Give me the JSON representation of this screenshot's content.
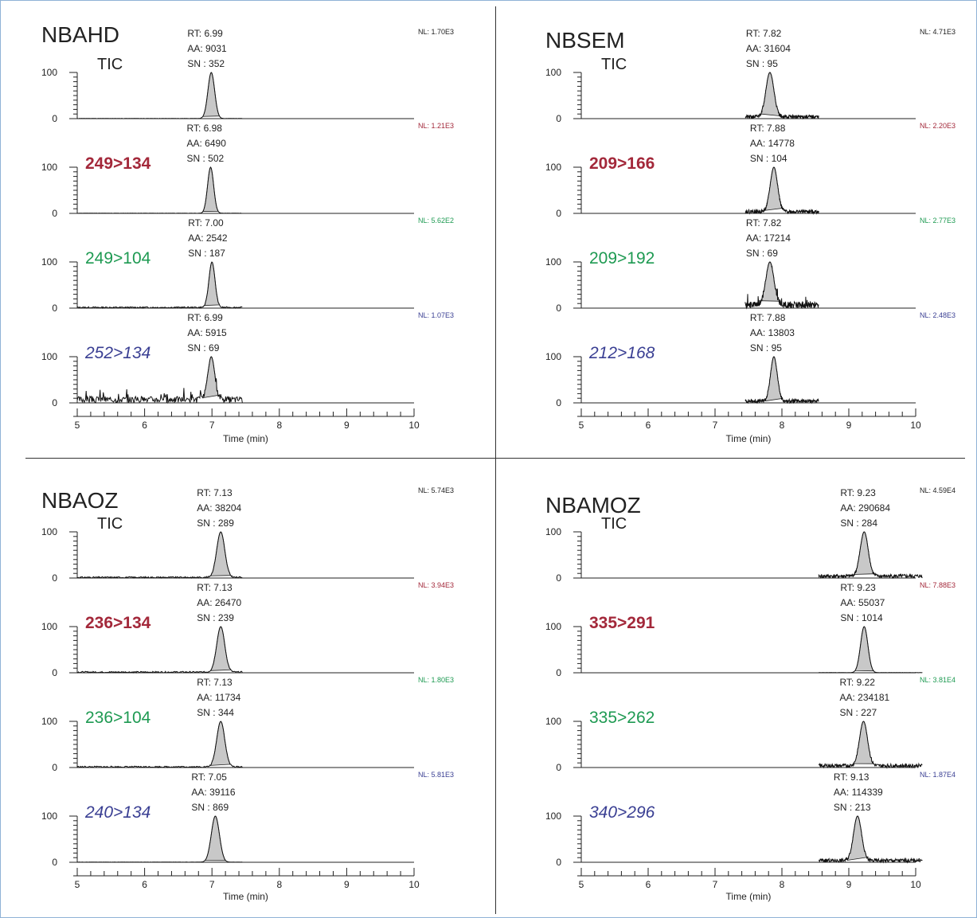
{
  "colors": {
    "tic": "#222222",
    "quant": "#a3283a",
    "qual": "#1e9a52",
    "is": "#3a3f93",
    "peak_fill": "#c8c8c8"
  },
  "chart_data": [
    {
      "type": "line",
      "title": "NBAHD",
      "xlabel": "Time (min)",
      "xlim": [
        5,
        10
      ],
      "xticks": [
        "5",
        "6",
        "7",
        "8",
        "9",
        "10"
      ],
      "ylim": [
        0,
        100
      ],
      "yticks": [
        "0",
        "100"
      ],
      "panels": [
        {
          "name": "TIC",
          "style": "tic",
          "nl": "NL: 1.70E3",
          "nl_style": "tic",
          "rt": "RT: 6.99",
          "aa": "AA: 9031",
          "sn": "SN : 352",
          "peak_rt": 6.99,
          "peak_width": 0.05,
          "trace_range": [
            5.0,
            7.45
          ],
          "noise": "flat",
          "seed": 11
        },
        {
          "name": "249>134",
          "style": "quant",
          "nl": "NL: 1.21E3",
          "nl_style": "quant",
          "rt": "RT: 6.98",
          "aa": "AA: 6490",
          "sn": "SN : 502",
          "peak_rt": 6.98,
          "peak_width": 0.045,
          "trace_range": [
            5.0,
            7.45
          ],
          "noise": "flat",
          "seed": 12
        },
        {
          "name": "249>104",
          "style": "qual",
          "nl": "NL: 5.62E2",
          "nl_style": "qual",
          "rt": "RT: 7.00",
          "aa": "AA: 2542",
          "sn": "SN : 187",
          "peak_rt": 7.0,
          "peak_width": 0.045,
          "trace_range": [
            5.0,
            7.45
          ],
          "noise": "low",
          "seed": 13
        },
        {
          "name": "252>134",
          "style": "is",
          "nl": "NL: 1.07E3",
          "nl_style": "is",
          "rt": "RT: 6.99",
          "aa": "AA: 5915",
          "sn": "SN : 69",
          "peak_rt": 6.99,
          "peak_width": 0.05,
          "trace_range": [
            5.0,
            7.45
          ],
          "noise": "high",
          "seed": 14
        }
      ]
    },
    {
      "type": "line",
      "title": "NBSEM",
      "xlabel": "Time (min)",
      "xlim": [
        5,
        10
      ],
      "xticks": [
        "5",
        "6",
        "7",
        "8",
        "9",
        "10"
      ],
      "ylim": [
        0,
        100
      ],
      "yticks": [
        "0",
        "100"
      ],
      "panels": [
        {
          "name": "TIC",
          "style": "tic",
          "nl": "NL: 4.71E3",
          "nl_style": "tic",
          "rt": "RT: 7.82",
          "aa": "AA: 31604",
          "sn": "SN : 95",
          "peak_rt": 7.82,
          "peak_width": 0.06,
          "trace_range": [
            7.45,
            8.55
          ],
          "noise": "mid",
          "seed": 21
        },
        {
          "name": "209>166",
          "style": "quant",
          "nl": "NL: 2.20E3",
          "nl_style": "quant",
          "rt": "RT: 7.88",
          "aa": "AA: 14778",
          "sn": "SN : 104",
          "peak_rt": 7.88,
          "peak_width": 0.055,
          "trace_range": [
            7.45,
            8.55
          ],
          "noise": "mid",
          "seed": 22
        },
        {
          "name": "209>192",
          "style": "qual",
          "nl": "NL: 2.77E3",
          "nl_style": "qual",
          "rt": "RT: 7.82",
          "aa": "AA: 17214",
          "sn": "SN : 69",
          "peak_rt": 7.82,
          "peak_width": 0.06,
          "trace_range": [
            7.45,
            8.55
          ],
          "noise": "high",
          "seed": 23
        },
        {
          "name": "212>168",
          "style": "is",
          "nl": "NL: 2.48E3",
          "nl_style": "is",
          "rt": "RT: 7.88",
          "aa": "AA: 13803",
          "sn": "SN : 95",
          "peak_rt": 7.88,
          "peak_width": 0.05,
          "trace_range": [
            7.45,
            8.55
          ],
          "noise": "mid",
          "seed": 24
        }
      ]
    },
    {
      "type": "line",
      "title": "NBAOZ",
      "xlabel": "Time (min)",
      "xlim": [
        5,
        10
      ],
      "xticks": [
        "5",
        "6",
        "7",
        "8",
        "9",
        "10"
      ],
      "ylim": [
        0,
        100
      ],
      "yticks": [
        "0",
        "100"
      ],
      "panels": [
        {
          "name": "TIC",
          "style": "tic",
          "nl": "NL: 5.74E3",
          "nl_style": "tic",
          "rt": "RT: 7.13",
          "aa": "AA: 38204",
          "sn": "SN : 289",
          "peak_rt": 7.13,
          "peak_width": 0.06,
          "trace_range": [
            5.0,
            7.45
          ],
          "noise": "low",
          "seed": 31
        },
        {
          "name": "236>134",
          "style": "quant",
          "nl": "NL: 3.94E3",
          "nl_style": "quant",
          "rt": "RT: 7.13",
          "aa": "AA: 26470",
          "sn": "SN : 239",
          "peak_rt": 7.13,
          "peak_width": 0.06,
          "trace_range": [
            5.0,
            7.45
          ],
          "noise": "low",
          "seed": 32
        },
        {
          "name": "236>104",
          "style": "qual",
          "nl": "NL: 1.80E3",
          "nl_style": "qual",
          "rt": "RT: 7.13",
          "aa": "AA: 11734",
          "sn": "SN : 344",
          "peak_rt": 7.13,
          "peak_width": 0.06,
          "trace_range": [
            5.0,
            7.45
          ],
          "noise": "low",
          "seed": 33
        },
        {
          "name": "240>134",
          "style": "is",
          "nl": "NL: 5.81E3",
          "nl_style": "is",
          "rt": "RT: 7.05",
          "aa": "AA: 39116",
          "sn": "SN : 869",
          "peak_rt": 7.05,
          "peak_width": 0.06,
          "trace_range": [
            5.0,
            7.45
          ],
          "noise": "flat",
          "seed": 34
        }
      ]
    },
    {
      "type": "line",
      "title": "NBAMOZ",
      "xlabel": "Time (min)",
      "xlim": [
        5,
        10
      ],
      "xticks": [
        "5",
        "6",
        "7",
        "8",
        "9",
        "10"
      ],
      "ylim": [
        0,
        100
      ],
      "yticks": [
        "0",
        "100"
      ],
      "panels": [
        {
          "name": "TIC",
          "style": "tic",
          "nl": "NL: 4.59E4",
          "nl_style": "tic",
          "rt": "RT: 9.23",
          "aa": "AA: 290684",
          "sn": "SN : 284",
          "peak_rt": 9.23,
          "peak_width": 0.06,
          "trace_range": [
            8.55,
            10.1
          ],
          "noise": "mid",
          "seed": 41
        },
        {
          "name": "335>291",
          "style": "quant",
          "nl": "NL: 7.88E3",
          "nl_style": "quant",
          "rt": "RT: 9.23",
          "aa": "AA: 55037",
          "sn": "SN : 1014",
          "peak_rt": 9.23,
          "peak_width": 0.055,
          "trace_range": [
            8.55,
            10.1
          ],
          "noise": "flat",
          "seed": 42
        },
        {
          "name": "335>262",
          "style": "qual",
          "nl": "NL: 3.81E4",
          "nl_style": "qual",
          "rt": "RT: 9.22",
          "aa": "AA: 234181",
          "sn": "SN : 227",
          "peak_rt": 9.22,
          "peak_width": 0.06,
          "trace_range": [
            8.55,
            10.1
          ],
          "noise": "mid",
          "seed": 43
        },
        {
          "name": "340>296",
          "style": "is",
          "nl": "NL: 1.87E4",
          "nl_style": "is",
          "rt": "RT: 9.13",
          "aa": "AA: 114339",
          "sn": "SN : 213",
          "peak_rt": 9.13,
          "peak_width": 0.06,
          "trace_range": [
            8.55,
            10.1
          ],
          "noise": "mid",
          "seed": 44
        }
      ]
    }
  ]
}
